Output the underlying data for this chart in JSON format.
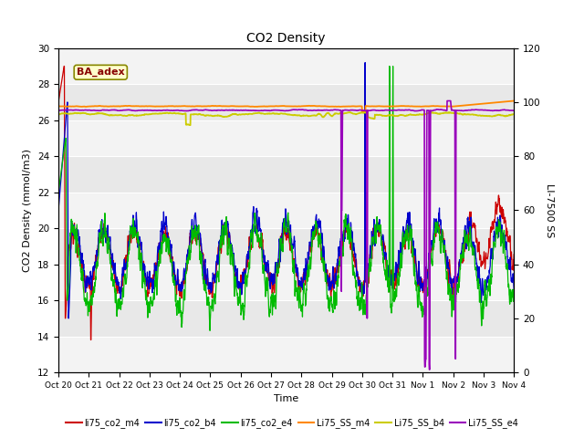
{
  "title": "CO2 Density",
  "xlabel": "Time",
  "ylabel_left": "CO2 Density (mmol/m3)",
  "ylabel_right": "LI-7500 SS",
  "ylim_left": [
    12,
    30
  ],
  "ylim_right": [
    0,
    120
  ],
  "annotation": "BA_adex",
  "x_ticks": [
    "Oct 20",
    "Oct 21",
    "Oct 22",
    "Oct 23",
    "Oct 24",
    "Oct 25",
    "Oct 26",
    "Oct 27",
    "Oct 28",
    "Oct 29",
    "Oct 30",
    "Oct 31",
    "Nov 1",
    "Nov 2",
    "Nov 3",
    "Nov 4"
  ],
  "series_colors": {
    "li75_co2_m4": "#cc0000",
    "li75_co2_b4": "#0000cc",
    "li75_co2_e4": "#00bb00",
    "Li75_SS_m4": "#ff8800",
    "Li75_SS_b4": "#cccc00",
    "Li75_SS_e4": "#9900bb"
  },
  "yticks_left": [
    12,
    14,
    16,
    18,
    20,
    22,
    24,
    26,
    28,
    30
  ],
  "yticks_right": [
    0,
    20,
    40,
    60,
    80,
    100,
    120
  ],
  "plot_bg": "#e8e8e8",
  "stripe_bg": "#d8d8d8"
}
